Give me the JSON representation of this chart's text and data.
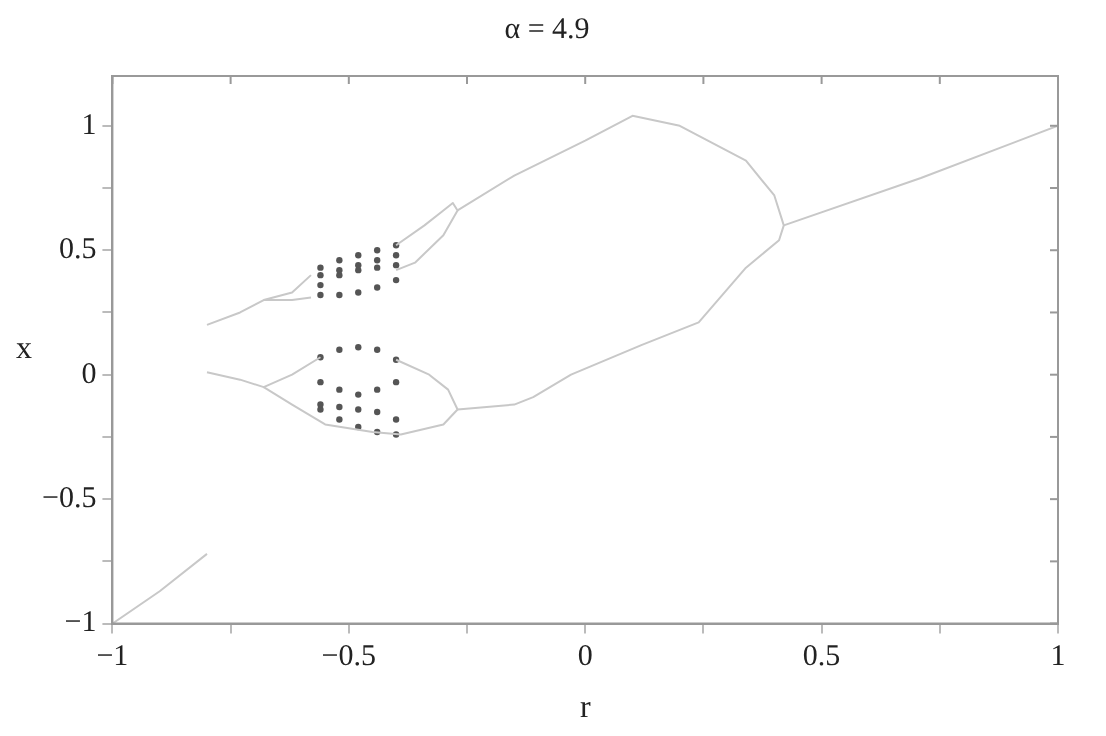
{
  "chart_data": {
    "type": "scatter",
    "title": "α = 4.9",
    "xlabel": "r",
    "ylabel": "x",
    "xlim": [
      -1,
      1
    ],
    "ylim": [
      -1,
      1.2
    ],
    "xticks": [
      -1,
      {
        "value": -0.75,
        "label": null
      },
      -0.5,
      {
        "value": -0.25,
        "label": null
      },
      0,
      {
        "value": 0.25,
        "label": null
      },
      0.5,
      {
        "value": 0.75,
        "label": null
      },
      1
    ],
    "yticks": [
      -1,
      {
        "value": -0.75,
        "label": null
      },
      -0.5,
      {
        "value": -0.25,
        "label": null
      },
      0,
      {
        "value": 0.25,
        "label": null
      },
      0.5,
      {
        "value": 0.75,
        "label": null
      },
      1
    ],
    "grid": false,
    "legend": false,
    "series": [
      {
        "type": "line",
        "color": "#c8c8c8",
        "x": [
          -1,
          -0.9,
          -0.8
        ],
        "values": [
          -1,
          -0.87,
          -0.72
        ]
      },
      {
        "type": "line",
        "color": "#c8c8c8",
        "x": [
          -0.8,
          -0.73,
          -0.68,
          -0.62,
          -0.58
        ],
        "values": [
          0.2,
          0.25,
          0.3,
          0.33,
          0.4
        ]
      },
      {
        "type": "line",
        "color": "#c8c8c8",
        "x": [
          -0.68,
          -0.62,
          -0.58
        ],
        "values": [
          0.3,
          0.3,
          0.31
        ]
      },
      {
        "type": "line",
        "color": "#c8c8c8",
        "x": [
          -0.4,
          -0.34,
          -0.3,
          -0.28,
          -0.27,
          -0.3,
          -0.36,
          -0.4
        ],
        "values": [
          0.52,
          0.6,
          0.66,
          0.69,
          0.66,
          0.56,
          0.45,
          0.42
        ]
      },
      {
        "type": "line",
        "color": "#c8c8c8",
        "x": [
          -0.27,
          -0.15,
          0,
          0.1,
          0.2,
          0.34,
          0.4,
          0.42,
          0.41,
          0.34,
          0.24,
          0.12,
          -0.03,
          -0.11,
          -0.15,
          -0.27
        ],
        "values": [
          0.66,
          0.8,
          0.94,
          1.04,
          1.0,
          0.86,
          0.72,
          0.6,
          0.54,
          0.43,
          0.21,
          0.12,
          0,
          -0.09,
          -0.12,
          -0.14
        ]
      },
      {
        "type": "line",
        "color": "#c8c8c8",
        "x": [
          0.42,
          0.71,
          1
        ],
        "values": [
          0.6,
          0.79,
          1.0
        ]
      },
      {
        "type": "line",
        "color": "#c8c8c8",
        "x": [
          -0.8,
          -0.73,
          -0.68,
          -0.62,
          -0.56
        ],
        "values": [
          0.01,
          -0.02,
          -0.05,
          0.0,
          0.07
        ]
      },
      {
        "type": "line",
        "color": "#c8c8c8",
        "x": [
          -0.68,
          -0.62,
          -0.55,
          -0.45,
          -0.39,
          -0.3,
          -0.27,
          -0.29,
          -0.33,
          -0.4
        ],
        "values": [
          -0.05,
          -0.12,
          -0.2,
          -0.23,
          -0.24,
          -0.2,
          -0.14,
          -0.06,
          0.0,
          0.06
        ]
      },
      {
        "type": "scatter",
        "color": "#555555",
        "x": [
          -0.56,
          -0.56,
          -0.52,
          -0.52,
          -0.48,
          -0.48,
          -0.44,
          -0.44,
          -0.4,
          -0.4,
          -0.56,
          -0.56,
          -0.52,
          -0.52,
          -0.48,
          -0.48,
          -0.44,
          -0.44,
          -0.4,
          -0.4,
          -0.56,
          -0.56,
          -0.52,
          -0.52,
          -0.48,
          -0.48,
          -0.44,
          -0.44,
          -0.4,
          -0.4,
          -0.56,
          -0.56,
          -0.52,
          -0.52,
          -0.48,
          -0.48,
          -0.44,
          -0.44,
          -0.4,
          -0.4
        ],
        "values": [
          0.4,
          0.43,
          0.42,
          0.46,
          0.44,
          0.48,
          0.46,
          0.5,
          0.48,
          0.52,
          0.32,
          0.36,
          0.32,
          0.4,
          0.33,
          0.42,
          0.35,
          0.43,
          0.38,
          0.44,
          -0.03,
          0.07,
          -0.06,
          0.1,
          -0.08,
          0.11,
          -0.06,
          0.1,
          -0.03,
          0.06,
          -0.14,
          -0.12,
          -0.18,
          -0.13,
          -0.21,
          -0.14,
          -0.23,
          -0.15,
          -0.24,
          -0.18
        ]
      }
    ]
  }
}
